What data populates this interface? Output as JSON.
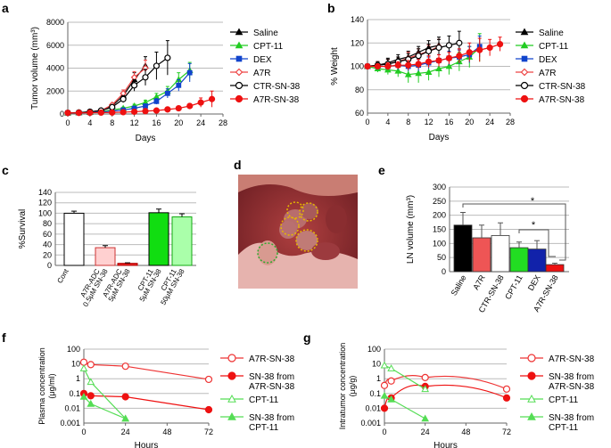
{
  "panel_letters": {
    "a": "a",
    "b": "b",
    "c": "c",
    "d": "d",
    "e": "e",
    "f": "f",
    "g": "g"
  },
  "legend_series": [
    "Saline",
    "CPT-11",
    "DEX",
    "A7R",
    "CTR-SN-38",
    "A7R-SN-38"
  ],
  "colors": {
    "saline": "#000000",
    "cpt11": "#22cc22",
    "dex": "#1144cc",
    "a7r": "#ee4444",
    "ctr": "#000000",
    "a7rsn": "#ee1111",
    "grid": "#bbbbbb"
  },
  "chart_data": [
    {
      "panel": "a",
      "type": "line",
      "xlabel": "Days",
      "ylabel": "Tumor volume (mm³)",
      "xlim": [
        0,
        28
      ],
      "ylim": [
        0,
        8000
      ],
      "xticks": [
        "0",
        "4",
        "8",
        "12",
        "16",
        "20",
        "24",
        "28"
      ],
      "yticks": [
        "0",
        "2000",
        "4000",
        "6000",
        "8000"
      ],
      "series": [
        {
          "name": "Saline",
          "x": [
            0,
            2,
            4,
            6,
            8,
            10,
            12,
            14
          ],
          "y": [
            100,
            120,
            180,
            300,
            700,
            1600,
            3000,
            4200
          ],
          "err": [
            0,
            0,
            0,
            50,
            150,
            300,
            600,
            800
          ]
        },
        {
          "name": "CPT-11",
          "x": [
            0,
            2,
            4,
            6,
            8,
            10,
            12,
            14,
            16,
            18,
            20,
            22
          ],
          "y": [
            100,
            110,
            150,
            220,
            350,
            500,
            700,
            1000,
            1500,
            2000,
            3000,
            3800
          ],
          "err": [
            0,
            0,
            0,
            50,
            80,
            100,
            150,
            200,
            300,
            400,
            600,
            700
          ]
        },
        {
          "name": "DEX",
          "x": [
            0,
            2,
            4,
            6,
            8,
            10,
            12,
            14,
            16,
            18,
            20,
            22
          ],
          "y": [
            100,
            100,
            130,
            180,
            250,
            350,
            500,
            700,
            1100,
            1800,
            2500,
            3600
          ],
          "err": [
            0,
            0,
            0,
            30,
            50,
            80,
            100,
            150,
            250,
            400,
            500,
            800
          ]
        },
        {
          "name": "A7R",
          "x": [
            0,
            2,
            4,
            6,
            8,
            10,
            12,
            14
          ],
          "y": [
            100,
            120,
            180,
            300,
            800,
            1800,
            3200,
            4000
          ],
          "err": [
            0,
            0,
            0,
            50,
            150,
            300,
            500,
            700
          ]
        },
        {
          "name": "CTR-SN-38",
          "x": [
            0,
            2,
            4,
            6,
            8,
            10,
            12,
            14,
            16,
            18
          ],
          "y": [
            100,
            130,
            200,
            300,
            600,
            1300,
            2500,
            3200,
            4200,
            4900
          ],
          "err": [
            0,
            0,
            0,
            50,
            150,
            300,
            500,
            700,
            1200,
            1500
          ]
        },
        {
          "name": "A7R-SN-38",
          "x": [
            0,
            2,
            4,
            6,
            8,
            10,
            12,
            14,
            16,
            18,
            20,
            22,
            24,
            26
          ],
          "y": [
            100,
            100,
            110,
            120,
            130,
            160,
            200,
            250,
            300,
            400,
            500,
            700,
            1000,
            1300
          ],
          "err": [
            0,
            0,
            0,
            0,
            0,
            50,
            50,
            80,
            100,
            150,
            150,
            200,
            400,
            700
          ]
        }
      ]
    },
    {
      "panel": "b",
      "type": "line",
      "xlabel": "Days",
      "ylabel": "% Weight",
      "xlim": [
        0,
        28
      ],
      "ylim": [
        60,
        140
      ],
      "xticks": [
        "0",
        "4",
        "8",
        "12",
        "16",
        "20",
        "24",
        "28"
      ],
      "yticks": [
        "60",
        "80",
        "100",
        "120",
        "140"
      ],
      "series": [
        {
          "name": "Saline",
          "x": [
            0,
            2,
            4,
            6,
            8,
            10,
            12,
            14
          ],
          "y": [
            100,
            101,
            103,
            106,
            108,
            112,
            116,
            118
          ],
          "err": [
            0,
            3,
            4,
            4,
            5,
            5,
            6,
            7
          ]
        },
        {
          "name": "CPT-11",
          "x": [
            0,
            2,
            4,
            6,
            8,
            10,
            12,
            14,
            16,
            18,
            20,
            22
          ],
          "y": [
            100,
            98,
            97,
            96,
            93,
            94,
            95,
            98,
            100,
            104,
            108,
            116
          ],
          "err": [
            0,
            3,
            4,
            5,
            7,
            8,
            7,
            7,
            7,
            8,
            9,
            12
          ]
        },
        {
          "name": "DEX",
          "x": [
            0,
            2,
            4,
            6,
            8,
            10,
            12,
            14,
            16,
            18,
            20,
            22
          ],
          "y": [
            100,
            100,
            100,
            101,
            100,
            101,
            103,
            105,
            107,
            108,
            110,
            117
          ],
          "err": [
            0,
            3,
            3,
            4,
            4,
            5,
            5,
            5,
            6,
            6,
            7,
            9
          ]
        },
        {
          "name": "A7R",
          "x": [
            0,
            2,
            4,
            6,
            8,
            10,
            12,
            14
          ],
          "y": [
            100,
            101,
            102,
            104,
            107,
            110,
            113,
            117
          ],
          "err": [
            0,
            3,
            4,
            4,
            5,
            5,
            5,
            6
          ]
        },
        {
          "name": "CTR-SN-38",
          "x": [
            0,
            2,
            4,
            6,
            8,
            10,
            12,
            14,
            16,
            18
          ],
          "y": [
            100,
            101,
            102,
            104,
            106,
            109,
            113,
            116,
            118,
            120
          ],
          "err": [
            0,
            3,
            4,
            4,
            5,
            6,
            6,
            7,
            8,
            10
          ]
        },
        {
          "name": "A7R-SN-38",
          "x": [
            0,
            2,
            4,
            6,
            8,
            10,
            12,
            14,
            16,
            18,
            20,
            22,
            24,
            26
          ],
          "y": [
            100,
            100,
            100,
            101,
            101,
            102,
            104,
            105,
            107,
            109,
            112,
            114,
            116,
            119
          ],
          "err": [
            0,
            2,
            3,
            3,
            4,
            4,
            5,
            5,
            5,
            6,
            8,
            10,
            7,
            6
          ]
        }
      ]
    },
    {
      "panel": "c",
      "type": "bar",
      "ylabel": "%Survival",
      "ylim": [
        0,
        140
      ],
      "yticks": [
        "0",
        "20",
        "40",
        "60",
        "80",
        "100",
        "120",
        "140"
      ],
      "categories": [
        "Cont",
        "A7R-ADC 0.5μM SN-38",
        "A7R-ADC 5μM SN-38",
        "CPT-11 5μM SN-38",
        "CPT-11 50μM SN-38"
      ],
      "category_lines": [
        [
          "Cont"
        ],
        [
          "A7R-ADC",
          "0.5μM SN-38"
        ],
        [
          "A7R-ADC",
          "5μM SN-38"
        ],
        [
          "CPT-11",
          "5μM SN-38"
        ],
        [
          "CPT-11",
          "50μM SN-38"
        ]
      ],
      "values": [
        100,
        34,
        4,
        101,
        93
      ],
      "errors": [
        4,
        4,
        1,
        7,
        6
      ]
    },
    {
      "panel": "e",
      "type": "bar",
      "ylabel": "LN volume (mm³)",
      "ylim": [
        0,
        300
      ],
      "yticks": [
        "0",
        "50",
        "100",
        "150",
        "200",
        "250",
        "300"
      ],
      "categories": [
        "Saline",
        "A7R",
        "CTR-SN-38",
        "CPT-11",
        "DEX",
        "A7R-SN-38"
      ],
      "values": [
        165,
        120,
        128,
        85,
        80,
        25
      ],
      "errors": [
        45,
        45,
        45,
        20,
        30,
        5
      ],
      "significance": [
        "*",
        "*"
      ]
    },
    {
      "panel": "f",
      "type": "line",
      "scale": "log",
      "xlabel": "Hours",
      "ylabel": "Plasma concentration (μg/ml)",
      "ylabel_lines": [
        "Plasma concentration",
        "(μg/ml)"
      ],
      "xlim": [
        0,
        72
      ],
      "ylim": [
        0.001,
        100
      ],
      "xticks": [
        "0",
        "24",
        "48",
        "72"
      ],
      "yticks": [
        "0.001",
        "0.01",
        "0.1",
        "1",
        "10",
        "100"
      ],
      "series": [
        {
          "name": "A7R-SN-38",
          "x": [
            0,
            4,
            24,
            72
          ],
          "y": [
            13,
            9,
            7,
            0.9
          ]
        },
        {
          "name": "SN-38 from A7R-SN-38",
          "x": [
            0,
            4,
            24,
            72
          ],
          "y": [
            0.1,
            0.07,
            0.06,
            0.008
          ]
        },
        {
          "name": "CPT-11",
          "x": [
            0,
            4,
            24
          ],
          "y": [
            5,
            0.6,
            0.002
          ]
        },
        {
          "name": "SN-38 from CPT-11",
          "x": [
            0,
            4,
            24
          ],
          "y": [
            0.06,
            0.02,
            0.002
          ]
        }
      ]
    },
    {
      "panel": "g",
      "type": "line",
      "scale": "log",
      "xlabel": "Hours",
      "ylabel": "Intratumor concentration (μg/g)",
      "ylabel_lines": [
        "Intratumor concentration",
        "(μg/g)"
      ],
      "xlim": [
        0,
        72
      ],
      "ylim": [
        0.001,
        100
      ],
      "xticks": [
        "0",
        "24",
        "48",
        "72"
      ],
      "yticks": [
        "0.001",
        "0.01",
        "0.1",
        "1",
        "10",
        "100"
      ],
      "series": [
        {
          "name": "A7R-SN-38",
          "x": [
            0,
            4,
            24,
            72
          ],
          "y": [
            0.35,
            0.7,
            1.2,
            0.2
          ]
        },
        {
          "name": "SN-38 from A7R-SN-38",
          "x": [
            0,
            4,
            24,
            72
          ],
          "y": [
            0.01,
            0.05,
            0.3,
            0.05
          ]
        },
        {
          "name": "CPT-11",
          "x": [
            0,
            4,
            24
          ],
          "y": [
            8,
            5,
            0.2
          ]
        },
        {
          "name": "SN-38 from CPT-11",
          "x": [
            0,
            4,
            24
          ],
          "y": [
            0.07,
            0.04,
            0.002
          ]
        }
      ]
    }
  ],
  "legend_fg": [
    {
      "lines": [
        "A7R-SN-38"
      ]
    },
    {
      "lines": [
        "SN-38 from",
        "A7R-SN-38"
      ]
    },
    {
      "lines": [
        "CPT-11"
      ]
    },
    {
      "lines": [
        "SN-38 from",
        "CPT-11"
      ]
    }
  ]
}
